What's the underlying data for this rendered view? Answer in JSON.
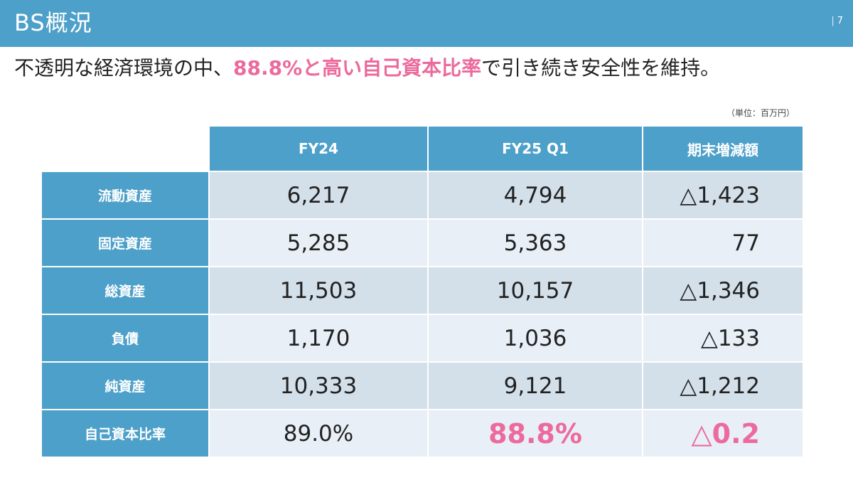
{
  "header": {
    "title": "BS概況",
    "page_number": "7",
    "separator": "|"
  },
  "subtitle": {
    "prefix": "不透明な経済環境の中、",
    "highlight": "88.8%と高い自己資本比率",
    "suffix": "で引き続き安全性を維持。"
  },
  "unit_label": "（単位：百万円）",
  "table": {
    "columns": [
      "FY24",
      "FY25 Q1",
      "期末増減額"
    ],
    "rows": [
      {
        "label": "流動資産",
        "fy24": "6,217",
        "fy25q1": "4,794",
        "diff": "△1,423"
      },
      {
        "label": "固定資産",
        "fy24": "5,285",
        "fy25q1": "5,363",
        "diff": "77"
      },
      {
        "label": "総資産",
        "fy24": "11,503",
        "fy25q1": "10,157",
        "diff": "△1,346"
      },
      {
        "label": "負債",
        "fy24": "1,170",
        "fy25q1": "1,036",
        "diff": "△133"
      },
      {
        "label": "純資産",
        "fy24": "10,333",
        "fy25q1": "9,121",
        "diff": "△1,212"
      },
      {
        "label": "自己資本比率",
        "fy24": "89.0%",
        "fy25q1": "88.8%",
        "diff": "△0.2"
      }
    ]
  },
  "colors": {
    "header_bg": "#4da0c9",
    "highlight": "#ec6a9c",
    "row_dark": "#d3e0ea",
    "row_light": "#e8eff6"
  }
}
